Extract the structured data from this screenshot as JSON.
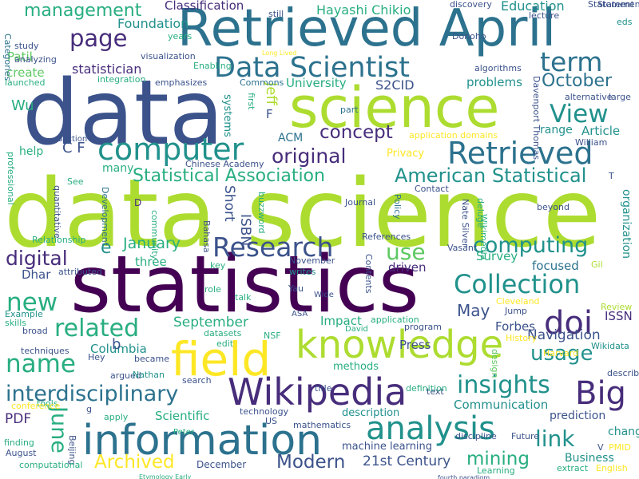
{
  "palette": {
    "dark_purple": "#440154",
    "indigo": "#472d7b",
    "slate_blue": "#3b528b",
    "steel_blue": "#2c728e",
    "teal_blue": "#21918c",
    "sea_green": "#28ae80",
    "green": "#5ec962",
    "lime": "#addc30",
    "yellow": "#fde725"
  },
  "words": [
    "data science",
    "data",
    "statistics",
    "Retrieved April",
    "science",
    "information",
    "field",
    "knowledge",
    "Wikipedia",
    "Data Scientist",
    "computer",
    "Retrieved",
    "analysis",
    "Big",
    "doi",
    "Collection",
    "term",
    "Research",
    "insights",
    "page",
    "name",
    "new",
    "related",
    "interdisciplinary",
    "digital",
    "computing",
    "View",
    "use",
    "link",
    "usage",
    "American Statistical",
    "Statistical Association",
    "original",
    "concept",
    "mining",
    "October",
    "Archived",
    "Modern",
    "June",
    "management",
    "Foundation",
    "Classification",
    "Education",
    "Hayashi Chikio",
    "statistician",
    "University",
    "S2CID",
    "problems",
    "PDF",
    "Jeff",
    "C F",
    "Wu",
    "Patil",
    "create",
    "May",
    "January",
    "Navigation",
    "September",
    "Short",
    "ISBN",
    "Survey",
    "focused",
    "Forbes",
    "ISSN",
    "Columbia",
    "Dhar",
    "three",
    "driven",
    "Impact",
    "Press",
    "methods",
    "Scientific",
    "Communication",
    "description",
    "21st Century",
    "December",
    "machine learning",
    "prediction",
    "change",
    "Business",
    "Article",
    "range",
    "organization",
    "systems",
    "first",
    "ACM",
    "Privacy",
    "help",
    "many",
    "b",
    "e",
    "F",
    "D",
    "ASA",
    "NSF",
    "David",
    "Peter",
    "Yau",
    "Wide",
    "writes",
    "talk",
    "role",
    "key",
    "November",
    "Contents",
    "References",
    "Jump",
    "History",
    "Cleveland",
    "Review",
    "Wikidata",
    "design",
    "Harvard",
    "described",
    "title",
    "text",
    "program",
    "definition",
    "application",
    "datasets",
    "edit",
    "became",
    "argued",
    "Hey",
    "Nathan",
    "search",
    "apply",
    "tools",
    "technology",
    "US",
    "mathematics",
    "Beijing",
    "finding",
    "August",
    "computational",
    "V",
    "PMID",
    "English",
    "Learning",
    "extract",
    "Future",
    "discipline",
    "conference",
    "g",
    "Example",
    "skills",
    "techniques",
    "broad",
    "attributed",
    "Relationship",
    "community",
    "Bahasa",
    "Development",
    "quantitative",
    "professional",
    "See",
    "Chinese Academy",
    "buzzword",
    "Journal",
    "Policy",
    "Contact",
    "Nate Silver",
    "deluge",
    "Vasant",
    "Gil",
    "beyond",
    "T",
    "alternative",
    "large",
    "William",
    "Davenport Thomas",
    "discovery",
    "Donoho",
    "algorithms",
    "lecture",
    "Statement",
    "eds",
    "Categories",
    "study",
    "analyzing",
    "launched",
    "years",
    "visualization",
    "Enabling",
    "emphasizes",
    "integration",
    "Commons",
    "Long Lived",
    "still",
    "part",
    "application domains",
    "Section",
    "fourth paradigm",
    "Etymology Early",
    "Wikimedia",
    "Statement"
  ]
}
